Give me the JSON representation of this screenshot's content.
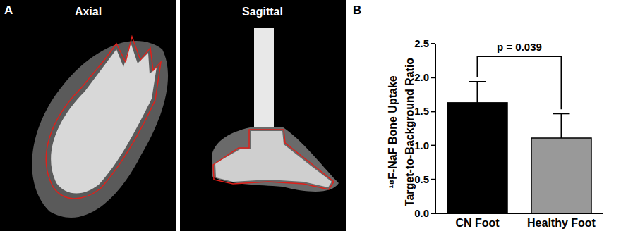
{
  "panels": {
    "a": {
      "label": "A",
      "views": [
        "Axial",
        "Sagittal"
      ]
    },
    "b": {
      "label": "B"
    }
  },
  "chart_data": {
    "type": "bar",
    "y_label": [
      "¹⁸F-NaF Bone Uptake",
      "Target-to-Background Ratio"
    ],
    "categories": [
      "CN Foot",
      "Healthy Foot"
    ],
    "values": [
      1.63,
      1.11
    ],
    "errors": [
      0.31,
      0.36
    ],
    "colors": [
      "#000000",
      "#999999"
    ],
    "ylim": [
      0,
      2.5
    ],
    "yticks": [
      {
        "value": 0,
        "label": "0.0"
      },
      0.5,
      {
        "value": 1,
        "label": "1.0"
      },
      1.5,
      {
        "value": 2,
        "label": "2.0"
      },
      2.5
    ],
    "annotations": [
      "p = 0.039"
    ],
    "grid": false
  }
}
